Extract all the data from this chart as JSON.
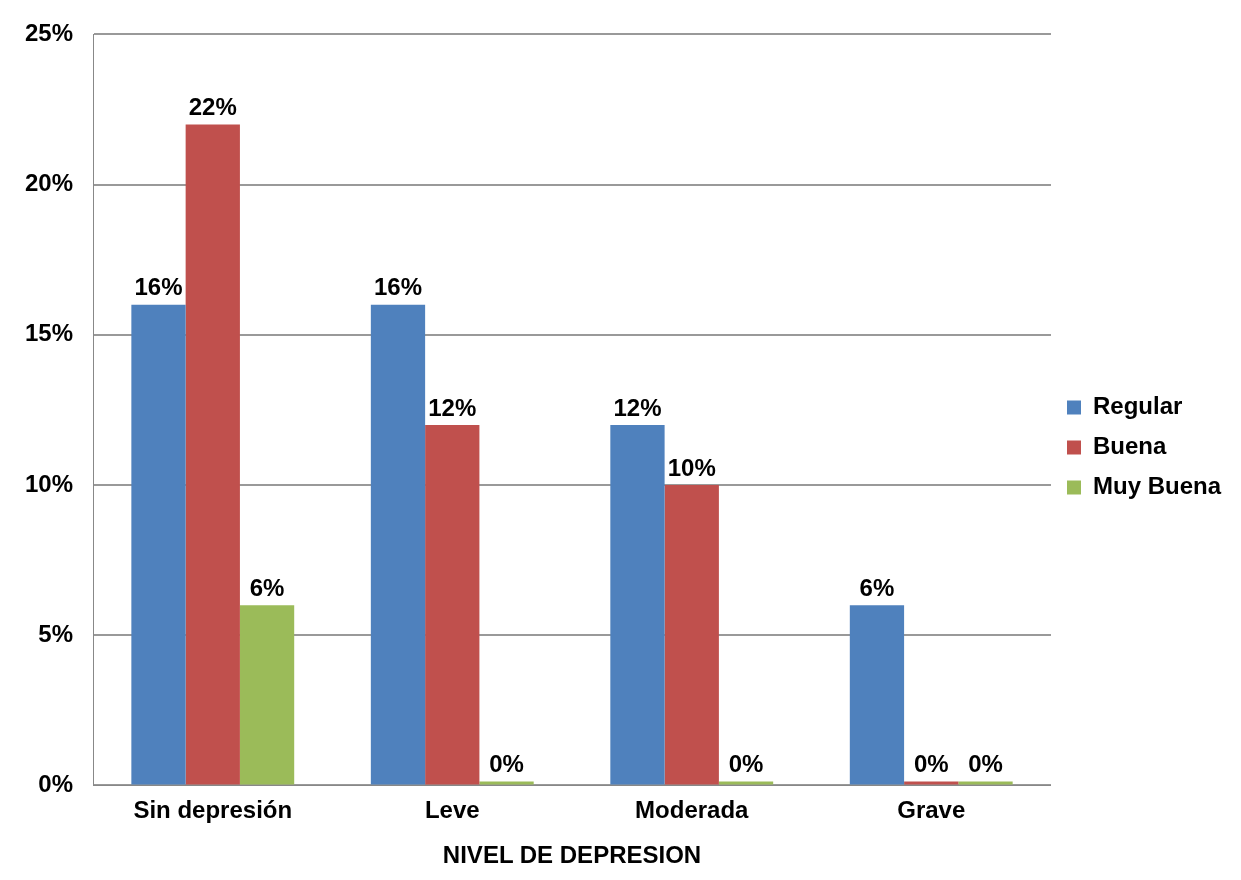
{
  "chart_data": {
    "type": "bar",
    "xlabel": "NIVEL DE DEPRESION",
    "categories": [
      "Sin depresión",
      "Leve",
      "Moderada",
      "Grave"
    ],
    "series": [
      {
        "name": "Regular",
        "color": "#4f81bd",
        "values": [
          16,
          16,
          12,
          6
        ],
        "value_labels": [
          "16%",
          "16%",
          "12%",
          "6%"
        ]
      },
      {
        "name": "Buena",
        "color": "#c0504d",
        "values": [
          22,
          12,
          10,
          0
        ],
        "value_labels": [
          "22%",
          "12%",
          "10%",
          "0%"
        ]
      },
      {
        "name": "Muy Buena",
        "color": "#9bbb59",
        "values": [
          6,
          0,
          0,
          0
        ],
        "value_labels": [
          "6%",
          "0%",
          "0%",
          "0%"
        ]
      }
    ],
    "ylim": [
      0,
      25
    ],
    "yticks": [
      {
        "value": 0,
        "label": "0%"
      },
      {
        "value": 5,
        "label": "5%"
      },
      {
        "value": 10,
        "label": "10%"
      },
      {
        "value": 15,
        "label": "15%"
      },
      {
        "value": 20,
        "label": "20%"
      },
      {
        "value": 25,
        "label": "25%"
      }
    ],
    "grid": "y",
    "legend": "right"
  }
}
